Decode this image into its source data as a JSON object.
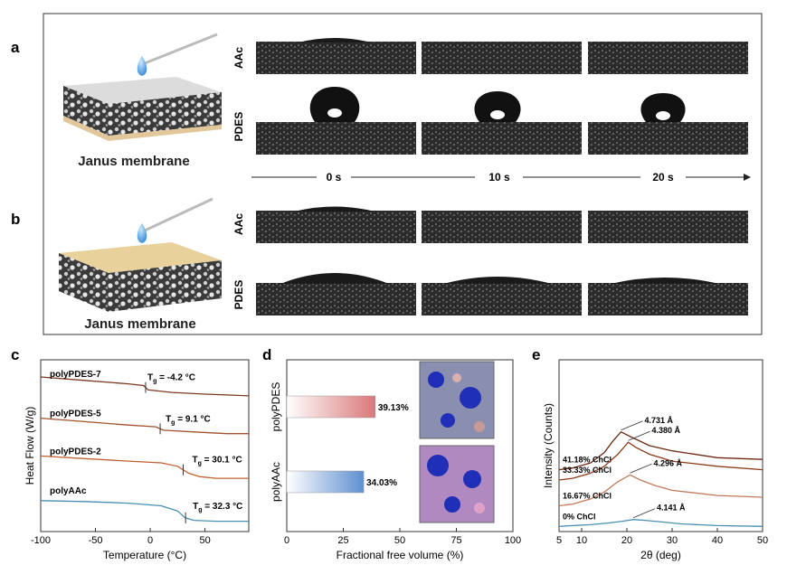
{
  "panels": {
    "a": {
      "letter": "a",
      "caption": "Janus membrane",
      "rows": [
        "AAc",
        "PDES"
      ]
    },
    "b": {
      "letter": "b",
      "caption": "Janus membrane",
      "rows": [
        "AAc",
        "PDES"
      ]
    },
    "time_labels": [
      "0 s",
      "10 s",
      "20 s"
    ],
    "c": {
      "letter": "c"
    },
    "d": {
      "letter": "d"
    },
    "e": {
      "letter": "e"
    }
  },
  "chart_data": [
    {
      "panel": "c",
      "type": "line",
      "xlabel": "Temperature (°C)",
      "ylabel": "Heat Flow (W/g)",
      "xlim": [
        -100,
        90
      ],
      "xticks": [
        -100,
        -50,
        0,
        50
      ],
      "series": [
        {
          "name": "polyPDES-7",
          "tg_label": "-4.2 °C",
          "tg_x": -4.2,
          "color": "#7a3a1e",
          "x": [
            -100,
            -60,
            -20,
            -6,
            -2,
            20,
            50,
            70,
            90
          ],
          "y": [
            0.1,
            0.12,
            0.14,
            0.15,
            0.175,
            0.19,
            0.2,
            0.205,
            0.21
          ]
        },
        {
          "name": "polyPDES-5",
          "tg_label": "9.1 °C",
          "tg_x": 9.1,
          "color": "#a0522d",
          "x": [
            -100,
            -60,
            -20,
            5,
            12,
            40,
            70,
            90
          ],
          "y": [
            0.34,
            0.36,
            0.38,
            0.39,
            0.41,
            0.42,
            0.43,
            0.43
          ]
        },
        {
          "name": "polyPDES-2",
          "tg_label": "30.1 °C",
          "tg_x": 30.1,
          "color": "#c06030",
          "x": [
            -100,
            -60,
            -20,
            10,
            25,
            35,
            45,
            60,
            90
          ],
          "y": [
            0.56,
            0.575,
            0.59,
            0.6,
            0.62,
            0.66,
            0.68,
            0.69,
            0.69
          ]
        },
        {
          "name": "polyAAc",
          "tg_label": "32.3 °C",
          "tg_x": 32.3,
          "color": "#4a8fb0",
          "x": [
            -100,
            -60,
            -20,
            10,
            25,
            32,
            40,
            60,
            90
          ],
          "y": [
            0.82,
            0.825,
            0.835,
            0.85,
            0.88,
            0.92,
            0.935,
            0.94,
            0.94
          ]
        }
      ]
    },
    {
      "panel": "d",
      "type": "bar",
      "orientation": "horizontal",
      "xlabel": "Fractional free volume (%)",
      "xlim": [
        0,
        100
      ],
      "xticks": [
        0,
        25,
        50,
        75,
        100
      ],
      "categories": [
        "polyPDES",
        "polyAAc"
      ],
      "values": [
        39.13,
        34.03
      ],
      "value_labels": [
        "39.13%",
        "34.03%"
      ],
      "colors": [
        "#d9777a",
        "#5f8fcf"
      ]
    },
    {
      "panel": "e",
      "type": "line",
      "xlabel": "2θ (deg)",
      "ylabel": "Intensity (Counts)",
      "xlim": [
        5,
        50
      ],
      "xticks": [
        5,
        10,
        20,
        30,
        40,
        50
      ],
      "series": [
        {
          "name": "41.18% ChCl",
          "peak_label": "4.731 Å",
          "peak_x": 18.7,
          "color": "#6b2a10",
          "x": [
            5,
            8,
            12,
            15,
            17,
            18.7,
            21,
            25,
            30,
            40,
            50
          ],
          "y": [
            0.36,
            0.37,
            0.4,
            0.46,
            0.53,
            0.58,
            0.55,
            0.5,
            0.47,
            0.43,
            0.42
          ]
        },
        {
          "name": "33.33% ChCl",
          "peak_label": "4.380 Å",
          "peak_x": 20.3,
          "color": "#8b3a1a",
          "x": [
            5,
            8,
            12,
            15,
            18,
            20.3,
            22,
            25,
            30,
            40,
            50
          ],
          "y": [
            0.3,
            0.31,
            0.34,
            0.38,
            0.45,
            0.52,
            0.49,
            0.45,
            0.41,
            0.38,
            0.36
          ]
        },
        {
          "name": "16.67% ChCl",
          "peak_label": "4.296 Å",
          "peak_x": 20.7,
          "color": "#c07a5a",
          "x": [
            5,
            8,
            12,
            15,
            18,
            20.7,
            23,
            26,
            30,
            40,
            50
          ],
          "y": [
            0.15,
            0.16,
            0.19,
            0.23,
            0.29,
            0.33,
            0.3,
            0.27,
            0.24,
            0.21,
            0.2
          ]
        },
        {
          "name": "0% ChCl",
          "peak_label": "4.141 Å",
          "peak_x": 21.4,
          "color": "#4a8fb0",
          "x": [
            5,
            8,
            12,
            16,
            19,
            21.4,
            24,
            28,
            32,
            40,
            50
          ],
          "y": [
            0.03,
            0.035,
            0.04,
            0.05,
            0.06,
            0.07,
            0.065,
            0.055,
            0.045,
            0.035,
            0.03
          ]
        }
      ]
    }
  ]
}
